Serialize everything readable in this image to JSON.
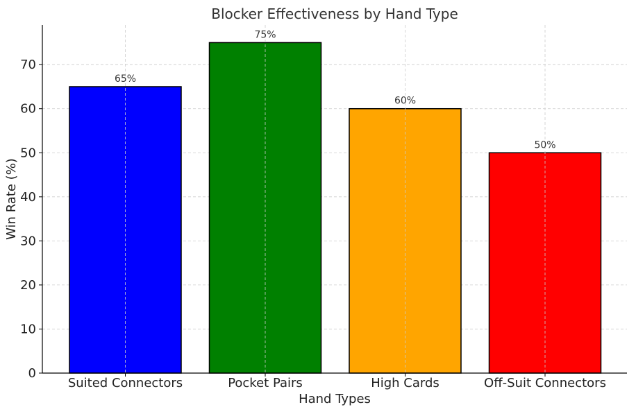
{
  "chart_data": {
    "type": "bar",
    "title": "Blocker Effectiveness by Hand Type",
    "xlabel": "Hand Types",
    "ylabel": "Win Rate (%)",
    "categories": [
      "Suited Connectors",
      "Pocket Pairs",
      "High Cards",
      "Off-Suit Connectors"
    ],
    "values": [
      65,
      75,
      60,
      50
    ],
    "value_labels": [
      "65%",
      "75%",
      "60%",
      "50%"
    ],
    "colors": [
      "#0000ff",
      "#008000",
      "#ffa500",
      "#ff0000"
    ],
    "ylim": [
      0,
      79
    ],
    "yticks": [
      0,
      10,
      20,
      30,
      40,
      50,
      60,
      70
    ],
    "grid": true
  }
}
